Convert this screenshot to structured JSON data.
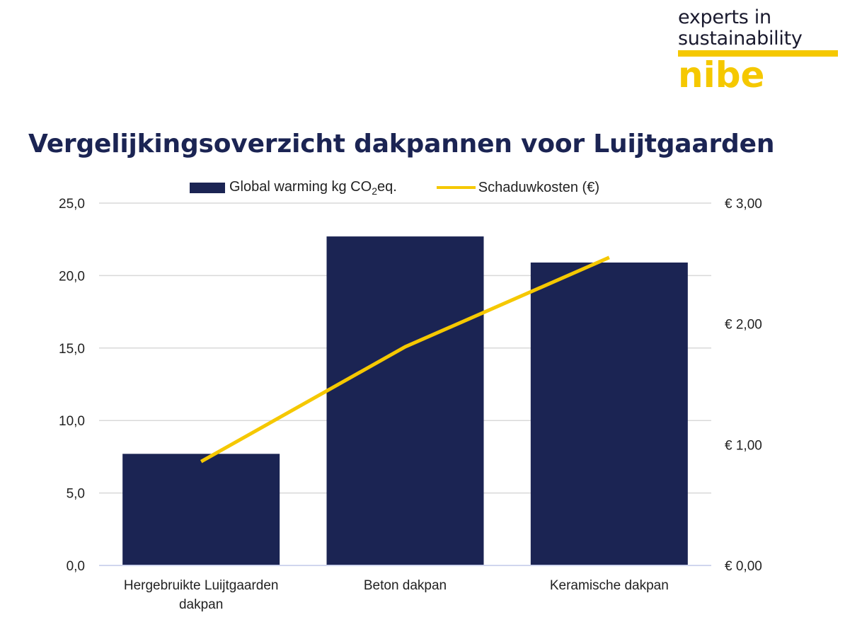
{
  "logo": {
    "line1": "experts in",
    "line2": "sustainability",
    "brand": "nibe",
    "brand_color": "#f5c800"
  },
  "title": "Vergelijkingsoverzicht dakpannen voor Luijtgaarden",
  "legend": {
    "bar_text": "Global warming kg CO",
    "bar_sub": "2",
    "bar_suffix": "eq.",
    "line_text": "Schaduwkosten (€)"
  },
  "chart_data": {
    "type": "bar",
    "categories": [
      [
        "Hergebruikte Luijtgaarden",
        "dakpan"
      ],
      [
        "Beton dakpan"
      ],
      [
        "Keramische dakpan"
      ]
    ],
    "series": [
      {
        "name": "Global warming kg CO2eq.",
        "type": "bar",
        "axis": "left",
        "color": "#1b2453",
        "values": [
          7.7,
          22.7,
          20.9
        ]
      },
      {
        "name": "Schaduwkosten (€)",
        "type": "line",
        "axis": "right",
        "color": "#f5c800",
        "values": [
          0.86,
          1.81,
          2.55
        ]
      }
    ],
    "y_left": {
      "min": 0,
      "max": 25,
      "step": 5,
      "ticks": [
        "0,0",
        "5,0",
        "10,0",
        "15,0",
        "20,0",
        "25,0"
      ]
    },
    "y_right": {
      "min": 0,
      "max": 3,
      "step": 1,
      "ticks": [
        "€ 0,00",
        "€ 1,00",
        "€ 2,00",
        "€ 3,00"
      ]
    },
    "grid": true,
    "legend_position": "top"
  }
}
